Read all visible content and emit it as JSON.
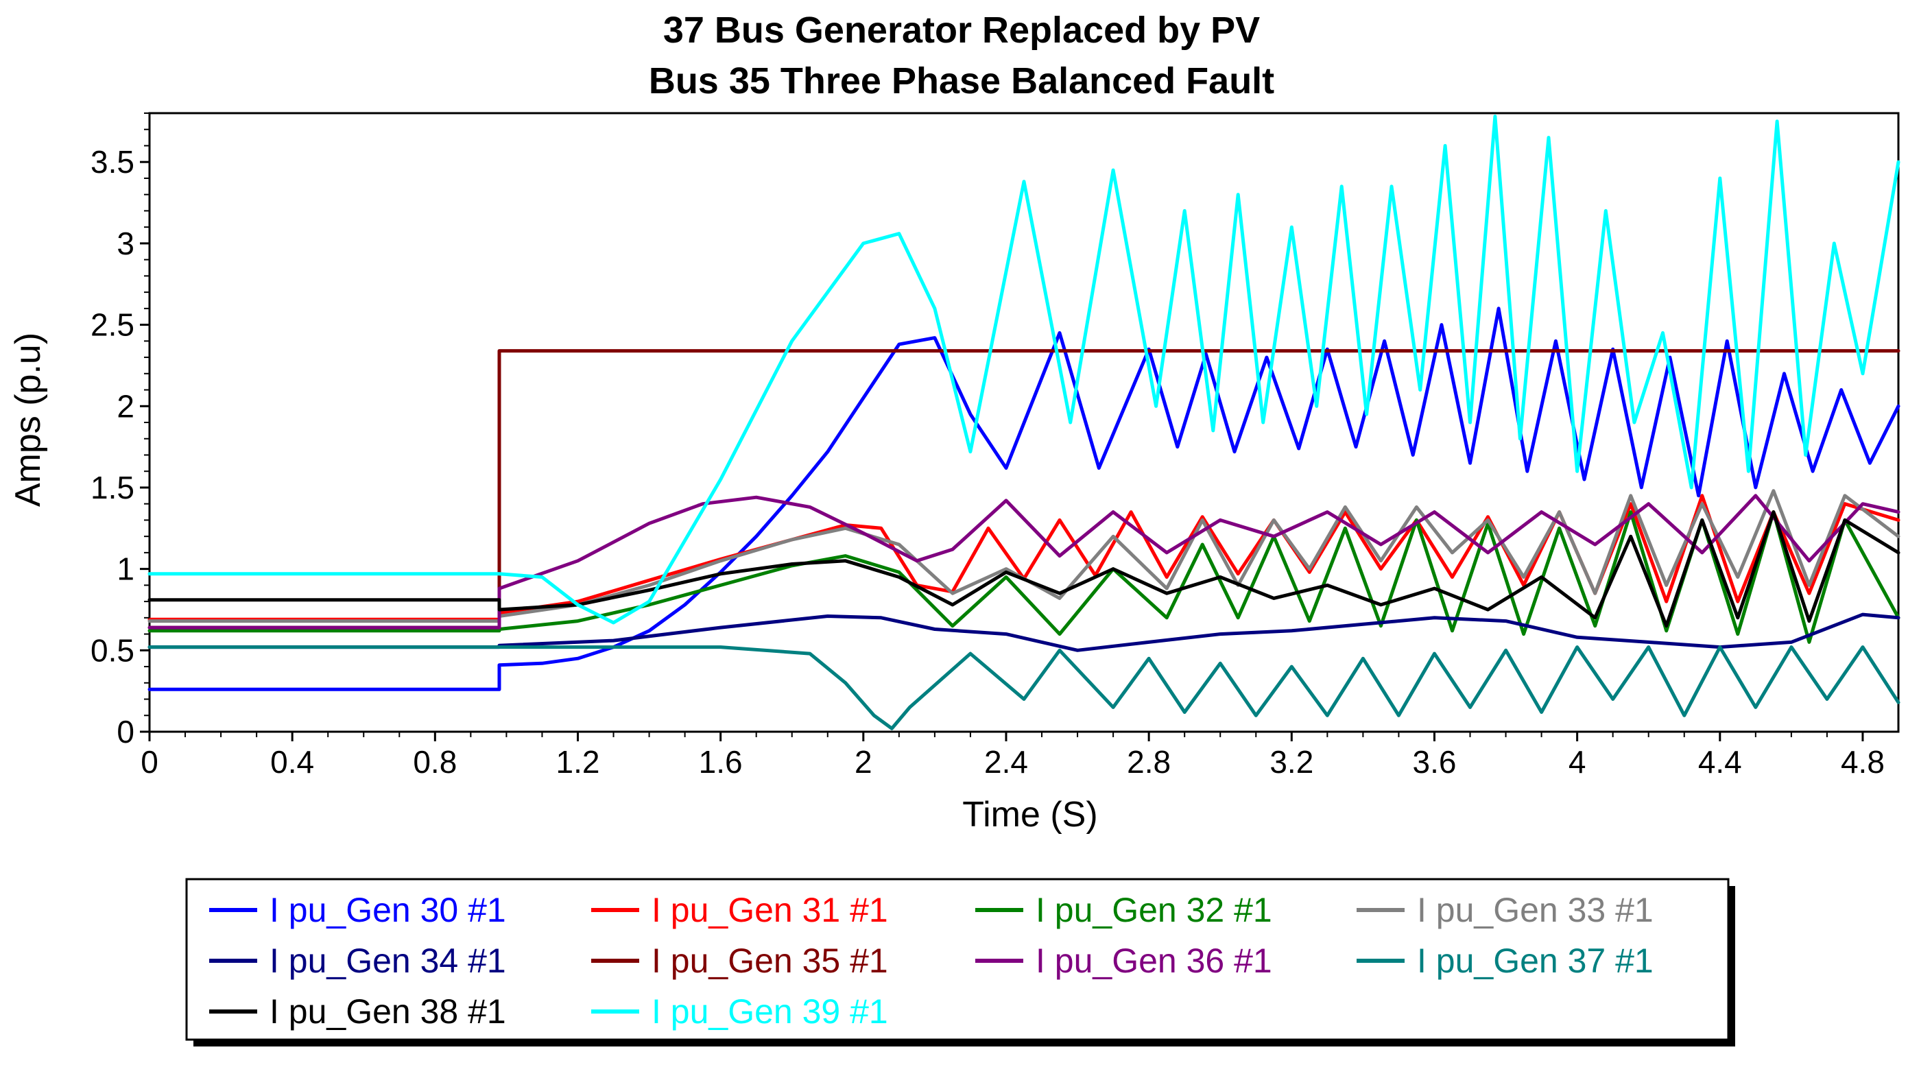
{
  "chart_data": {
    "type": "line",
    "title": [
      "37 Bus Generator Replaced by PV",
      "Bus 35 Three Phase Balanced Fault"
    ],
    "xlabel": "Time (S)",
    "ylabel": "Amps (p.u)",
    "xlim": [
      0,
      4.9
    ],
    "ylim": [
      0,
      3.8
    ],
    "xticks": [
      {
        "value": 0,
        "label": "0"
      },
      {
        "value": 0.4,
        "label": "0.4"
      },
      {
        "value": 0.8,
        "label": "0.8"
      },
      {
        "value": 1.2,
        "label": "1.2"
      },
      {
        "value": 1.6,
        "label": "1.6"
      },
      {
        "value": 2.0,
        "label": "2"
      },
      {
        "value": 2.4,
        "label": "2.4"
      },
      {
        "value": 2.8,
        "label": "2.8"
      },
      {
        "value": 3.2,
        "label": "3.2"
      },
      {
        "value": 3.6,
        "label": "3.6"
      },
      {
        "value": 4.0,
        "label": "4"
      },
      {
        "value": 4.4,
        "label": "4.4"
      },
      {
        "value": 4.8,
        "label": "4.8"
      }
    ],
    "yticks": [
      {
        "value": 0,
        "label": "0"
      },
      {
        "value": 0.5,
        "label": "0.5"
      },
      {
        "value": 1.0,
        "label": "1"
      },
      {
        "value": 1.5,
        "label": "1.5"
      },
      {
        "value": 2.0,
        "label": "2"
      },
      {
        "value": 2.5,
        "label": "2.5"
      },
      {
        "value": 3.0,
        "label": "3"
      },
      {
        "value": 3.5,
        "label": "3.5"
      }
    ],
    "legend_position": "bottom",
    "series": [
      {
        "name": "I pu_Gen 30 #1",
        "color": "#0000ff",
        "x": [
          0,
          0.98,
          0.98,
          1.1,
          1.2,
          1.3,
          1.4,
          1.5,
          1.6,
          1.7,
          1.8,
          1.9,
          2.0,
          2.1,
          2.2,
          2.3,
          2.4,
          2.55,
          2.66,
          2.8,
          2.88,
          2.96,
          3.04,
          3.13,
          3.22,
          3.3,
          3.38,
          3.46,
          3.54,
          3.62,
          3.7,
          3.78,
          3.86,
          3.94,
          4.02,
          4.1,
          4.18,
          4.26,
          4.34,
          4.42,
          4.5,
          4.58,
          4.66,
          4.74,
          4.82,
          4.9
        ],
        "y": [
          0.26,
          0.26,
          0.41,
          0.42,
          0.45,
          0.52,
          0.62,
          0.78,
          0.98,
          1.2,
          1.45,
          1.72,
          2.05,
          2.38,
          2.42,
          1.95,
          1.62,
          2.45,
          1.62,
          2.35,
          1.75,
          2.32,
          1.72,
          2.3,
          1.74,
          2.35,
          1.75,
          2.4,
          1.7,
          2.5,
          1.65,
          2.6,
          1.6,
          2.4,
          1.55,
          2.35,
          1.5,
          2.3,
          1.45,
          2.4,
          1.5,
          2.2,
          1.6,
          2.1,
          1.65,
          2.0
        ]
      },
      {
        "name": "I pu_Gen 31 #1",
        "color": "#ff0000",
        "x": [
          0,
          0.98,
          0.98,
          1.2,
          1.4,
          1.6,
          1.8,
          1.95,
          2.05,
          2.15,
          2.25,
          2.35,
          2.45,
          2.55,
          2.65,
          2.75,
          2.85,
          2.95,
          3.05,
          3.15,
          3.25,
          3.35,
          3.45,
          3.55,
          3.65,
          3.75,
          3.85,
          3.95,
          4.05,
          4.15,
          4.25,
          4.35,
          4.45,
          4.55,
          4.65,
          4.75,
          4.9
        ],
        "y": [
          0.69,
          0.69,
          0.73,
          0.8,
          0.93,
          1.06,
          1.18,
          1.27,
          1.25,
          0.9,
          0.86,
          1.25,
          0.94,
          1.3,
          0.96,
          1.35,
          0.95,
          1.32,
          0.97,
          1.3,
          0.98,
          1.35,
          1.0,
          1.3,
          0.95,
          1.32,
          0.9,
          1.35,
          0.85,
          1.4,
          0.8,
          1.45,
          0.8,
          1.35,
          0.85,
          1.4,
          1.3
        ]
      },
      {
        "name": "I pu_Gen 32 #1",
        "color": "#008000",
        "x": [
          0,
          0.98,
          0.98,
          1.2,
          1.4,
          1.6,
          1.8,
          1.95,
          2.1,
          2.25,
          2.4,
          2.55,
          2.7,
          2.85,
          2.95,
          3.05,
          3.15,
          3.25,
          3.35,
          3.45,
          3.55,
          3.65,
          3.75,
          3.85,
          3.95,
          4.05,
          4.15,
          4.25,
          4.35,
          4.45,
          4.55,
          4.65,
          4.75,
          4.9
        ],
        "y": [
          0.62,
          0.62,
          0.63,
          0.68,
          0.78,
          0.9,
          1.02,
          1.08,
          0.98,
          0.65,
          0.95,
          0.6,
          1.0,
          0.7,
          1.15,
          0.7,
          1.2,
          0.68,
          1.25,
          0.65,
          1.3,
          0.62,
          1.28,
          0.6,
          1.25,
          0.65,
          1.35,
          0.62,
          1.3,
          0.6,
          1.35,
          0.55,
          1.3,
          0.7
        ]
      },
      {
        "name": "I pu_Gen 33 #1",
        "color": "#808080",
        "x": [
          0,
          0.98,
          0.98,
          1.2,
          1.4,
          1.6,
          1.8,
          1.95,
          2.1,
          2.25,
          2.4,
          2.55,
          2.7,
          2.85,
          2.95,
          3.05,
          3.15,
          3.25,
          3.35,
          3.45,
          3.55,
          3.65,
          3.75,
          3.85,
          3.95,
          4.05,
          4.15,
          4.25,
          4.35,
          4.45,
          4.55,
          4.65,
          4.75,
          4.9
        ],
        "y": [
          0.68,
          0.68,
          0.71,
          0.78,
          0.9,
          1.05,
          1.18,
          1.25,
          1.15,
          0.85,
          1.0,
          0.82,
          1.2,
          0.88,
          1.3,
          0.9,
          1.3,
          1.0,
          1.38,
          1.05,
          1.38,
          1.1,
          1.3,
          0.95,
          1.35,
          0.85,
          1.45,
          0.9,
          1.4,
          0.95,
          1.48,
          0.9,
          1.45,
          1.2
        ]
      },
      {
        "name": "I pu_Gen 34 #1",
        "color": "#000080",
        "x": [
          0,
          0.98,
          0.98,
          1.3,
          1.6,
          1.9,
          2.05,
          2.2,
          2.4,
          2.6,
          2.8,
          3.0,
          3.2,
          3.4,
          3.6,
          3.8,
          4.0,
          4.2,
          4.4,
          4.6,
          4.8,
          4.9
        ],
        "y": [
          0.52,
          0.52,
          0.53,
          0.56,
          0.64,
          0.71,
          0.7,
          0.63,
          0.6,
          0.5,
          0.55,
          0.6,
          0.62,
          0.66,
          0.7,
          0.68,
          0.58,
          0.55,
          0.52,
          0.55,
          0.72,
          0.7
        ]
      },
      {
        "name": "I pu_Gen 35 #1",
        "color": "#800000",
        "x": [
          0,
          0.98,
          0.98,
          4.9
        ],
        "y": [
          0.64,
          0.64,
          2.34,
          2.34
        ]
      },
      {
        "name": "I pu_Gen 36 #1",
        "color": "#800080",
        "x": [
          0,
          0.98,
          0.98,
          1.2,
          1.4,
          1.55,
          1.7,
          1.85,
          2.0,
          2.15,
          2.25,
          2.4,
          2.55,
          2.7,
          2.85,
          3.0,
          3.15,
          3.3,
          3.45,
          3.6,
          3.75,
          3.9,
          4.05,
          4.2,
          4.35,
          4.5,
          4.65,
          4.8,
          4.9
        ],
        "y": [
          0.64,
          0.64,
          0.88,
          1.05,
          1.28,
          1.4,
          1.44,
          1.38,
          1.22,
          1.05,
          1.12,
          1.42,
          1.08,
          1.35,
          1.1,
          1.3,
          1.2,
          1.35,
          1.15,
          1.35,
          1.1,
          1.35,
          1.15,
          1.4,
          1.1,
          1.45,
          1.05,
          1.4,
          1.35
        ]
      },
      {
        "name": "I pu_Gen 37 #1",
        "color": "#008080",
        "x": [
          0,
          0.98,
          0.98,
          1.6,
          1.85,
          1.95,
          2.03,
          2.08,
          2.13,
          2.3,
          2.45,
          2.55,
          2.7,
          2.8,
          2.9,
          3.0,
          3.1,
          3.2,
          3.3,
          3.4,
          3.5,
          3.6,
          3.7,
          3.8,
          3.9,
          4.0,
          4.1,
          4.2,
          4.3,
          4.4,
          4.5,
          4.6,
          4.7,
          4.8,
          4.9
        ],
        "y": [
          0.52,
          0.52,
          0.52,
          0.52,
          0.48,
          0.3,
          0.1,
          0.02,
          0.15,
          0.48,
          0.2,
          0.5,
          0.15,
          0.45,
          0.12,
          0.42,
          0.1,
          0.4,
          0.1,
          0.45,
          0.1,
          0.48,
          0.15,
          0.5,
          0.12,
          0.52,
          0.2,
          0.52,
          0.1,
          0.52,
          0.15,
          0.52,
          0.2,
          0.52,
          0.18
        ]
      },
      {
        "name": "I pu_Gen 38 #1",
        "color": "#000000",
        "x": [
          0,
          0.98,
          0.98,
          1.2,
          1.4,
          1.6,
          1.8,
          1.95,
          2.1,
          2.25,
          2.4,
          2.55,
          2.7,
          2.85,
          3.0,
          3.15,
          3.3,
          3.45,
          3.6,
          3.75,
          3.9,
          4.05,
          4.15,
          4.25,
          4.35,
          4.45,
          4.55,
          4.65,
          4.75,
          4.9
        ],
        "y": [
          0.81,
          0.81,
          0.75,
          0.78,
          0.87,
          0.97,
          1.03,
          1.05,
          0.95,
          0.78,
          0.98,
          0.85,
          1.0,
          0.85,
          0.95,
          0.82,
          0.9,
          0.78,
          0.88,
          0.75,
          0.95,
          0.7,
          1.2,
          0.65,
          1.3,
          0.7,
          1.35,
          0.68,
          1.3,
          1.1
        ]
      },
      {
        "name": "I pu_Gen 39 #1",
        "color": "#00ffff",
        "x": [
          0,
          0.98,
          0.98,
          1.1,
          1.2,
          1.3,
          1.4,
          1.6,
          1.8,
          2.0,
          2.1,
          2.2,
          2.3,
          2.45,
          2.58,
          2.7,
          2.82,
          2.9,
          2.98,
          3.05,
          3.12,
          3.2,
          3.27,
          3.34,
          3.41,
          3.48,
          3.56,
          3.63,
          3.7,
          3.77,
          3.84,
          3.92,
          4.0,
          4.08,
          4.16,
          4.24,
          4.32,
          4.4,
          4.48,
          4.56,
          4.64,
          4.72,
          4.8,
          4.9
        ],
        "y": [
          0.97,
          0.97,
          0.97,
          0.95,
          0.78,
          0.67,
          0.8,
          1.55,
          2.4,
          3.0,
          3.06,
          2.6,
          1.72,
          3.38,
          1.9,
          3.45,
          2.0,
          3.2,
          1.85,
          3.3,
          1.9,
          3.1,
          2.0,
          3.35,
          1.95,
          3.35,
          2.1,
          3.6,
          1.9,
          3.78,
          1.8,
          3.65,
          1.6,
          3.2,
          1.9,
          2.45,
          1.5,
          3.4,
          1.6,
          3.75,
          1.7,
          3.0,
          2.2,
          3.5
        ]
      }
    ]
  }
}
